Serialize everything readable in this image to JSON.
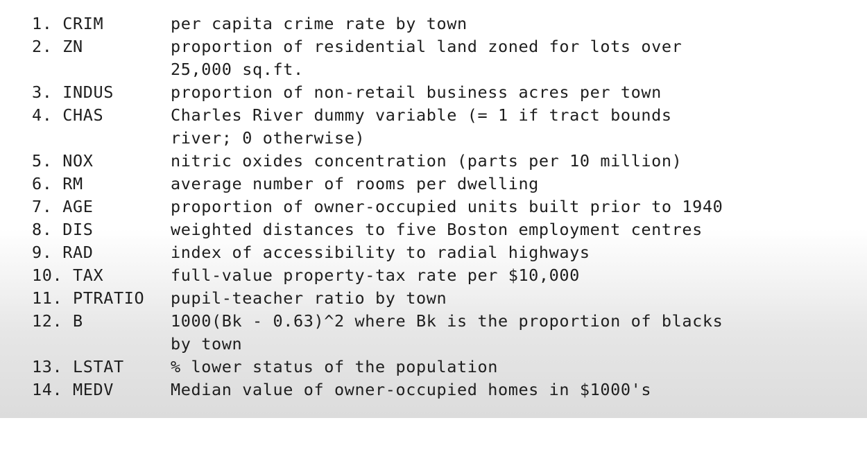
{
  "variables": [
    {
      "label": "1. CRIM",
      "lines": [
        "per capita crime rate by town"
      ]
    },
    {
      "label": "2. ZN",
      "lines": [
        "proportion of residential land zoned for lots over",
        "25,000 sq.ft."
      ]
    },
    {
      "label": "3. INDUS",
      "lines": [
        "proportion of non-retail business acres per town"
      ]
    },
    {
      "label": "4. CHAS",
      "lines": [
        "Charles River dummy variable (= 1 if tract bounds",
        "river; 0 otherwise)"
      ]
    },
    {
      "label": "5. NOX",
      "lines": [
        "nitric oxides concentration (parts per 10 million)"
      ]
    },
    {
      "label": "6. RM",
      "lines": [
        "average number of rooms per dwelling"
      ]
    },
    {
      "label": "7. AGE",
      "lines": [
        "proportion of owner-occupied units built prior to 1940"
      ]
    },
    {
      "label": "8. DIS",
      "lines": [
        "weighted distances to five Boston employment centres"
      ]
    },
    {
      "label": "9. RAD",
      "lines": [
        "index of accessibility to radial highways"
      ]
    },
    {
      "label": "10. TAX",
      "lines": [
        "full-value property-tax rate per $10,000"
      ]
    },
    {
      "label": "11. PTRATIO",
      "lines": [
        "pupil-teacher ratio by town"
      ]
    },
    {
      "label": "12. B",
      "lines": [
        "1000(Bk - 0.63)^2 where Bk is the proportion of blacks",
        "by town"
      ]
    },
    {
      "label": "13. LSTAT",
      "lines": [
        "% lower status of the population"
      ]
    },
    {
      "label": "14. MEDV",
      "lines": [
        "Median value of owner-occupied homes in $1000's"
      ]
    }
  ]
}
